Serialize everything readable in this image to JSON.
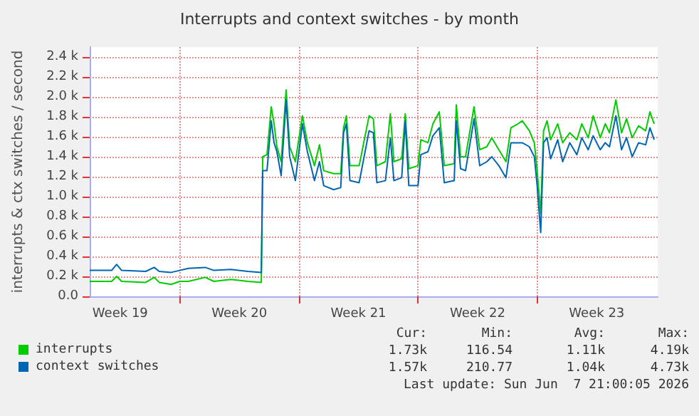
{
  "chart_data": {
    "type": "line",
    "title": "Interrupts and context switches - by month",
    "ylabel": "interrupts & ctx switches / second",
    "x": [
      "2026-05-05T17:00",
      "2026-05-07T00:00",
      "2026-05-07T07:00",
      "2026-05-07T14:00",
      "2026-05-09T00:00",
      "2026-05-09T12:00",
      "2026-05-09T19:00",
      "2026-05-10T12:00",
      "2026-05-11T00:00",
      "2026-05-11T12:00",
      "2026-05-12T12:00",
      "2026-05-13T00:00",
      "2026-05-14T00:00",
      "2026-05-15T00:00",
      "2026-05-15T19:00",
      "2026-05-15T21:00",
      "2026-05-16T03:00",
      "2026-05-16T09:00",
      "2026-05-16T13:00",
      "2026-05-16T17:00",
      "2026-05-16T23:00",
      "2026-05-17T06:00",
      "2026-05-17T11:00",
      "2026-05-17T19:00",
      "2026-05-18T05:00",
      "2026-05-18T12:00",
      "2026-05-18T22:00",
      "2026-05-19T05:00",
      "2026-05-19T11:00",
      "2026-05-20T01:00",
      "2026-05-20T11:00",
      "2026-05-20T15:00",
      "2026-05-20T19:00",
      "2026-05-21T00:00",
      "2026-05-21T13:00",
      "2026-05-22T03:00",
      "2026-05-22T09:00",
      "2026-05-22T14:00",
      "2026-05-23T02:00",
      "2026-05-23T09:00",
      "2026-05-23T14:00",
      "2026-05-24T01:00",
      "2026-05-24T06:00",
      "2026-05-24T11:00",
      "2026-05-25T00:00",
      "2026-05-25T04:00",
      "2026-05-25T14:00",
      "2026-05-25T21:00",
      "2026-05-26T06:00",
      "2026-05-26T13:00",
      "2026-05-27T03:00",
      "2026-05-27T06:00",
      "2026-05-27T12:00",
      "2026-05-27T19:00",
      "2026-05-28T07:00",
      "2026-05-28T15:00",
      "2026-05-29T01:00",
      "2026-05-29T08:00",
      "2026-05-29T18:00",
      "2026-05-30T04:00",
      "2026-05-30T11:00",
      "2026-05-30T21:00",
      "2026-05-31T03:00",
      "2026-05-31T13:00",
      "2026-05-31T20:00",
      "2026-06-01T00:00",
      "2026-06-01T05:00",
      "2026-06-01T09:00",
      "2026-06-01T14:00",
      "2026-06-01T19:00",
      "2026-06-02T05:00",
      "2026-06-02T12:00",
      "2026-06-02T22:00",
      "2026-06-03T08:00",
      "2026-06-03T15:00",
      "2026-06-04T00:00",
      "2026-06-04T07:00",
      "2026-06-04T17:00",
      "2026-06-05T00:00",
      "2026-06-05T06:00",
      "2026-06-05T15:00",
      "2026-06-05T23:00",
      "2026-06-06T06:00",
      "2026-06-06T14:00",
      "2026-06-06T23:00",
      "2026-06-07T09:00",
      "2026-06-07T15:00",
      "2026-06-07T21:00"
    ],
    "series": [
      {
        "name": "interrupts",
        "color": "#00cc00",
        "values": [
          150,
          150,
          200,
          150,
          140,
          190,
          140,
          120,
          150,
          150,
          190,
          150,
          170,
          150,
          140,
          1400,
          1420,
          1900,
          1730,
          1500,
          1350,
          2070,
          1500,
          1350,
          1810,
          1540,
          1310,
          1520,
          1260,
          1230,
          1230,
          1690,
          1810,
          1310,
          1310,
          1810,
          1780,
          1310,
          1350,
          1830,
          1350,
          1380,
          1830,
          1280,
          1310,
          1570,
          1540,
          1730,
          1850,
          1310,
          1330,
          1920,
          1400,
          1400,
          1900,
          1470,
          1500,
          1590,
          1470,
          1350,
          1690,
          1730,
          1760,
          1660,
          1540,
          1260,
          830,
          1660,
          1760,
          1570,
          1730,
          1540,
          1640,
          1570,
          1730,
          1590,
          1810,
          1590,
          1730,
          1640,
          1970,
          1640,
          1780,
          1590,
          1710,
          1660,
          1850,
          1730
        ]
      },
      {
        "name": "context switches",
        "color": "#0066b3",
        "values": [
          260,
          260,
          320,
          260,
          250,
          290,
          250,
          240,
          260,
          280,
          290,
          260,
          270,
          250,
          240,
          1260,
          1260,
          1760,
          1540,
          1450,
          1210,
          1970,
          1400,
          1160,
          1730,
          1450,
          1160,
          1350,
          1110,
          1070,
          1090,
          1640,
          1730,
          1160,
          1140,
          1660,
          1640,
          1140,
          1160,
          1590,
          1160,
          1190,
          1760,
          1110,
          1110,
          1420,
          1450,
          1610,
          1690,
          1140,
          1160,
          1760,
          1280,
          1260,
          1780,
          1310,
          1350,
          1400,
          1310,
          1190,
          1540,
          1540,
          1540,
          1500,
          1400,
          1110,
          640,
          1540,
          1590,
          1380,
          1570,
          1350,
          1540,
          1420,
          1590,
          1470,
          1610,
          1470,
          1540,
          1500,
          1810,
          1470,
          1590,
          1400,
          1540,
          1520,
          1690,
          1570
        ]
      }
    ],
    "xlim": [
      "2026-05-05T17:00",
      "2026-06-08T02:00"
    ],
    "xticks": [
      {
        "value": "2026-05-07T12:00",
        "label": "Week 19"
      },
      {
        "value": "2026-05-11T00:00",
        "label": null
      },
      {
        "value": "2026-05-14T12:00",
        "label": "Week 20"
      },
      {
        "value": "2026-05-18T00:00",
        "label": null
      },
      {
        "value": "2026-05-21T12:00",
        "label": "Week 21"
      },
      {
        "value": "2026-05-25T00:00",
        "label": null
      },
      {
        "value": "2026-05-28T12:00",
        "label": "Week 22"
      },
      {
        "value": "2026-06-01T00:00",
        "label": null
      },
      {
        "value": "2026-06-04T12:00",
        "label": "Week 23"
      }
    ],
    "ylim": [
      0,
      2500
    ],
    "yticks": [
      {
        "value": 0,
        "label": "0.0"
      },
      {
        "value": 200,
        "label": "0.2 k"
      },
      {
        "value": 400,
        "label": "0.4 k"
      },
      {
        "value": 600,
        "label": "0.6 k"
      },
      {
        "value": 800,
        "label": "0.8 k"
      },
      {
        "value": 1000,
        "label": "1.0 k"
      },
      {
        "value": 1200,
        "label": "1.2 k"
      },
      {
        "value": 1400,
        "label": "1.4 k"
      },
      {
        "value": 1600,
        "label": "1.6 k"
      },
      {
        "value": 1800,
        "label": "1.8 k"
      },
      {
        "value": 2000,
        "label": "2.0 k"
      },
      {
        "value": 2200,
        "label": "2.2 k"
      },
      {
        "value": 2400,
        "label": "2.4 k"
      }
    ],
    "grid": true,
    "legend": "bottom left",
    "annotations": [
      "Cur:",
      "Min:",
      "Avg:",
      "Max:",
      "1.73k",
      "116.54",
      "1.11k",
      "4.19k",
      "1.57k",
      "210.77",
      "1.04k",
      "4.73k",
      "Last update: Sun Jun  7 21:00:05 2026"
    ]
  }
}
